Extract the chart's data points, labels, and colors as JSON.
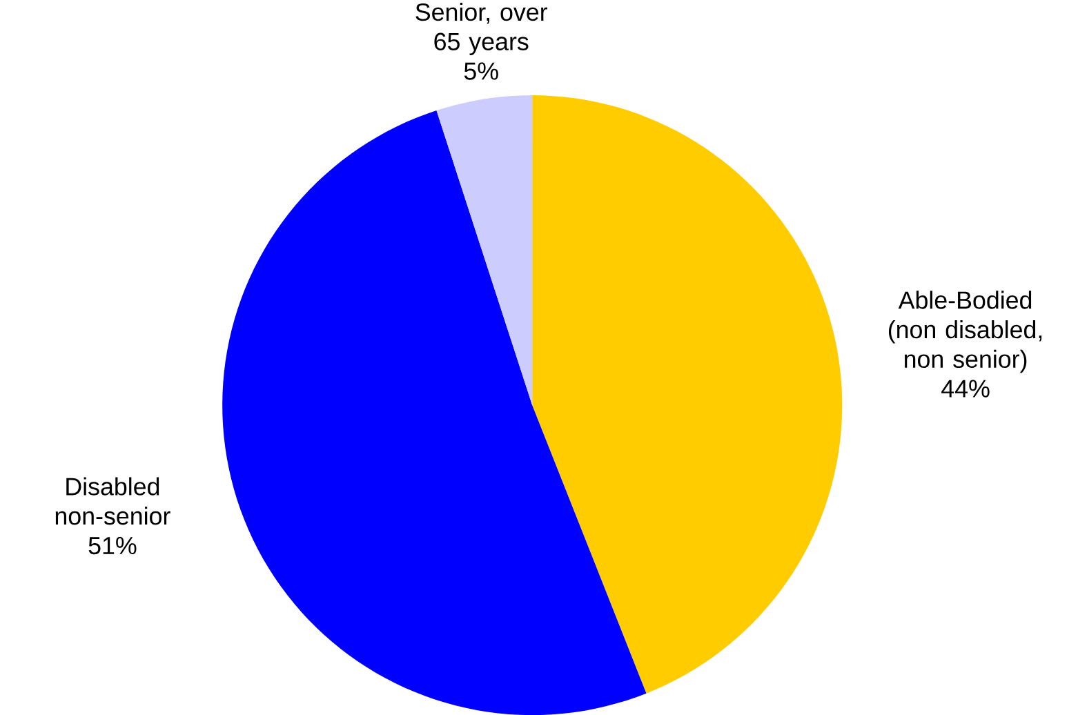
{
  "chart_data": {
    "type": "pie",
    "categories": [
      "Able-Bodied (non disabled, non senior)",
      "Disabled non-senior",
      "Senior, over 65 years"
    ],
    "values": [
      44,
      51,
      5
    ],
    "colors": [
      "#ffcc00",
      "#0000ff",
      "#ccccff"
    ],
    "value_labels": [
      "44%",
      "51%",
      "5%"
    ]
  }
}
